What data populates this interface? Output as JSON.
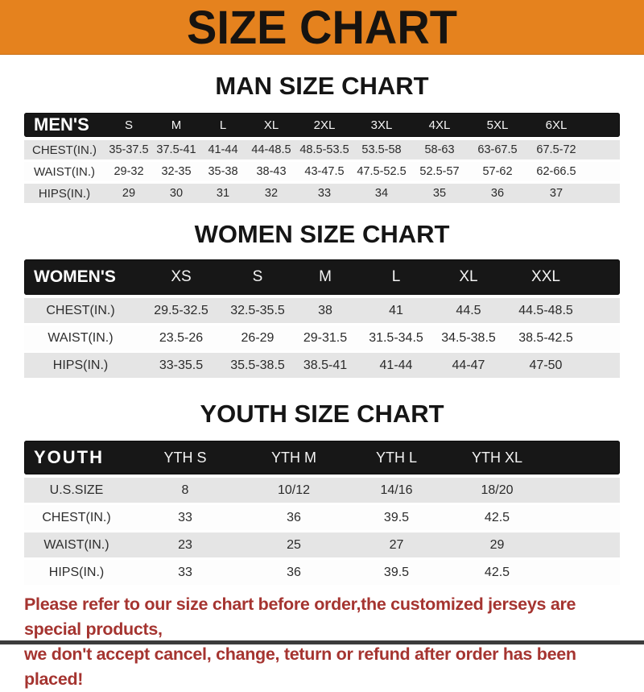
{
  "banner": {
    "title": "SIZE CHART",
    "bg_color": "#E5821E",
    "text_color": "#161310"
  },
  "sections": [
    {
      "heading": "MAN SIZE CHART",
      "header_label": "MEN'S",
      "columns": [
        "S",
        "M",
        "L",
        "XL",
        "2XL",
        "3XL",
        "4XL",
        "5XL",
        "6XL"
      ],
      "rows": [
        {
          "label": "CHEST(IN.)",
          "values": [
            "35-37.5",
            "37.5-41",
            "41-44",
            "44-48.5",
            "48.5-53.5",
            "53.5-58",
            "58-63",
            "63-67.5",
            "67.5-72"
          ]
        },
        {
          "label": "WAIST(IN.)",
          "values": [
            "29-32",
            "32-35",
            "35-38",
            "38-43",
            "43-47.5",
            "47.5-52.5",
            "52.5-57",
            "57-62",
            "62-66.5"
          ]
        },
        {
          "label": "HIPS(IN.)",
          "values": [
            "29",
            "30",
            "31",
            "32",
            "33",
            "34",
            "35",
            "36",
            "37"
          ]
        }
      ]
    },
    {
      "heading": "WOMEN SIZE CHART",
      "header_label": "WOMEN'S",
      "columns": [
        "XS",
        "S",
        "M",
        "L",
        "XL",
        "XXL"
      ],
      "rows": [
        {
          "label": "CHEST(IN.)",
          "values": [
            "29.5-32.5",
            "32.5-35.5",
            "38",
            "41",
            "44.5",
            "44.5-48.5"
          ]
        },
        {
          "label": "WAIST(IN.)",
          "values": [
            "23.5-26",
            "26-29",
            "29-31.5",
            "31.5-34.5",
            "34.5-38.5",
            "38.5-42.5"
          ]
        },
        {
          "label": "HIPS(IN.)",
          "values": [
            "33-35.5",
            "35.5-38.5",
            "38.5-41",
            "41-44",
            "44-47",
            "47-50"
          ]
        }
      ]
    },
    {
      "heading": "YOUTH SIZE CHART",
      "header_label": "YOUTH",
      "columns": [
        "YTH S",
        "YTH M",
        "YTH L",
        "YTH XL"
      ],
      "rows": [
        {
          "label": "U.S.SIZE",
          "values": [
            "8",
            "10/12",
            "14/16",
            "18/20"
          ]
        },
        {
          "label": "CHEST(IN.)",
          "values": [
            "33",
            "36",
            "39.5",
            "42.5"
          ]
        },
        {
          "label": "WAIST(IN.)",
          "values": [
            "23",
            "25",
            "27",
            "29"
          ]
        },
        {
          "label": "HIPS(IN.)",
          "values": [
            "33",
            "36",
            "39.5",
            "42.5"
          ]
        }
      ]
    }
  ],
  "table_colors": {
    "header_bg": "#171717",
    "header_text": "#ffffff",
    "row_gray": "#E5E5E5",
    "row_white": "#FDFDFD",
    "cell_text": "#2b2b2b"
  },
  "footer": {
    "line1": "Please refer to our size chart before order,the customized jerseys are special products,",
    "line2": "we don't accept cancel, change, teturn or refund after order has been placed!",
    "text_color": "#A53430"
  }
}
